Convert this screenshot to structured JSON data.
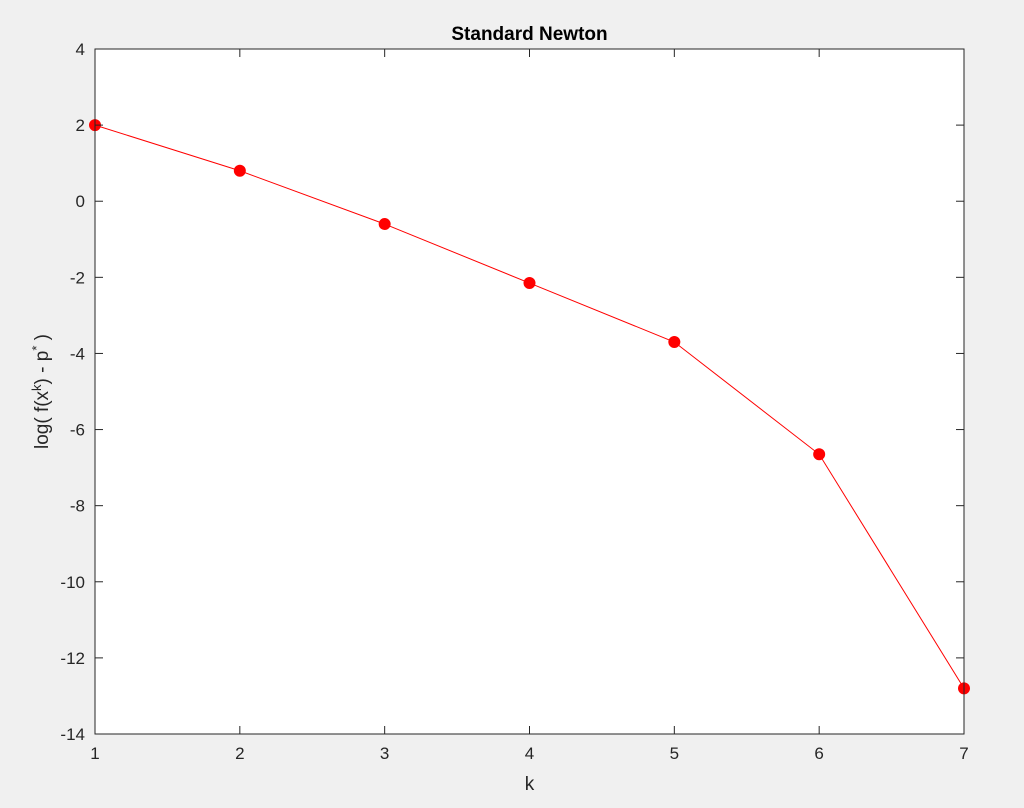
{
  "chart_data": {
    "type": "line",
    "title": "Standard Newton",
    "xlabel": "k",
    "ylabel_parts": {
      "pre": "log( f(x",
      "sup1": "k",
      "mid": ") - p",
      "sup2": "*",
      "post": " )"
    },
    "xlim": [
      1,
      7
    ],
    "ylim": [
      -14,
      4
    ],
    "x_ticks": [
      1,
      2,
      3,
      4,
      5,
      6,
      7
    ],
    "y_ticks": [
      -14,
      -12,
      -10,
      -8,
      -6,
      -4,
      -2,
      0,
      2,
      4
    ],
    "grid": false,
    "legend": "none",
    "series": [
      {
        "color": "#ff0000",
        "marker": "filled-circle",
        "x": [
          1,
          2,
          3,
          4,
          5,
          6,
          7
        ],
        "y": [
          2.0,
          0.8,
          -0.6,
          -2.15,
          -3.7,
          -6.65,
          -12.8
        ]
      }
    ]
  },
  "colors": {
    "figure_background": "#f0f0f0",
    "axes_background": "#ffffff",
    "axis_color": "#262626"
  }
}
